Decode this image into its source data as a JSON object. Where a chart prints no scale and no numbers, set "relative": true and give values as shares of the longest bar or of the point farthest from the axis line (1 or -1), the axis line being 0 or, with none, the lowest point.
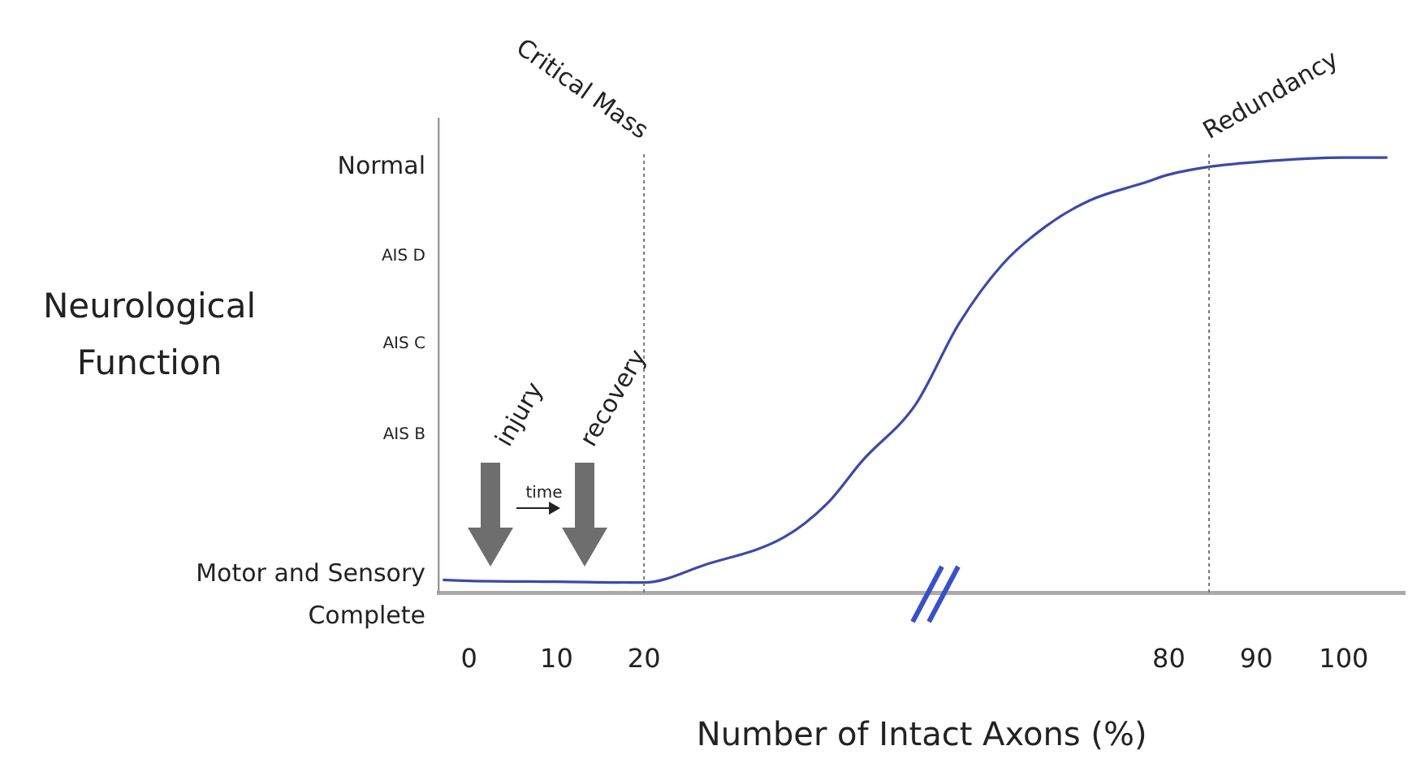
{
  "chart_data": {
    "type": "line",
    "relative": true,
    "xlabel": "Number of Intact Axons (%)",
    "x": [
      -3,
      0,
      10,
      20,
      27,
      36,
      41,
      45,
      51,
      56,
      61,
      66,
      71,
      77,
      80,
      85,
      90,
      100,
      105
    ],
    "series": [
      {
        "color": "#3b4aa8",
        "values": [
          0.029,
          0.027,
          0.025,
          0.023,
          0.064,
          0.127,
          0.206,
          0.304,
          0.431,
          0.618,
          0.755,
          0.843,
          0.902,
          0.941,
          0.961,
          0.98,
          0.99,
          1,
          1
        ]
      }
    ],
    "xlim": [
      -3.5,
      107
    ],
    "xticks": [
      0,
      10,
      20,
      80,
      90,
      100
    ],
    "ref_lines": [
      {
        "axis": "x",
        "value": 20,
        "label": "Critical Mass",
        "color": "#777777",
        "line_style": "dotted"
      },
      {
        "axis": "x",
        "value": 84.6,
        "label": "Redundancy",
        "color": "#777777",
        "line_style": "dotted"
      }
    ],
    "annotations": [
      "Neurological Function",
      "Normal",
      "AIS D",
      "AIS C",
      "AIS B",
      "Motor and Sensory Complete",
      "injury",
      "time",
      "recovery"
    ],
    "grid": false,
    "legend": false,
    "marker": "none",
    "line_style": "solid"
  }
}
